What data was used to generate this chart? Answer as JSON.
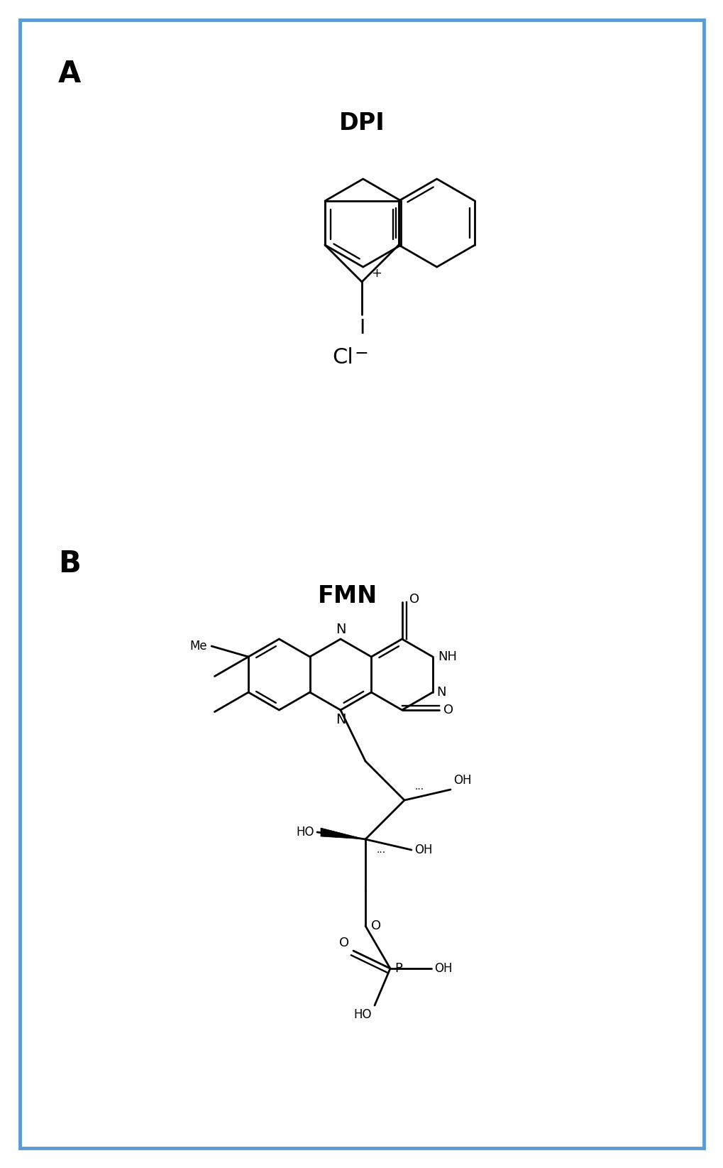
{
  "title_A": "A",
  "title_B": "B",
  "label_DPI": "DPI",
  "label_FMN": "FMN",
  "background_color": "#ffffff",
  "border_color": "#5b9bd5",
  "border_linewidth": 3.5,
  "line_color": "#000000",
  "line_width": 2.0,
  "fig_width": 10.2,
  "fig_height": 16.45
}
